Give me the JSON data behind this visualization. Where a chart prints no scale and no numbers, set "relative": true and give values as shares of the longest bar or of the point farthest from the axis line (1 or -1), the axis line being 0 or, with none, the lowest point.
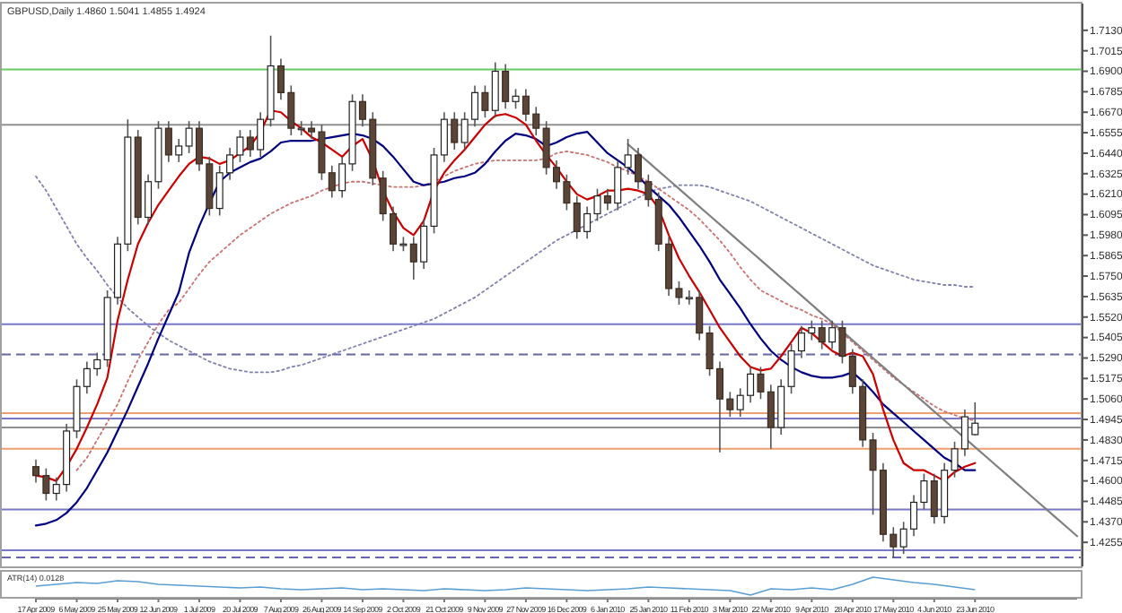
{
  "chart_data": [
    {
      "type": "candlestick",
      "title": "GBPUSD,Daily 1.4860 1.5041 1.4855 1.4924",
      "categories": [
        "17 Apr 2009",
        null,
        null,
        null,
        "6 May 2009",
        null,
        null,
        null,
        "25 May 2009",
        null,
        null,
        null,
        "12 Jun 2009",
        null,
        null,
        null,
        "1 Jul 2009",
        null,
        null,
        null,
        "20 Jul 2009",
        null,
        null,
        null,
        "7 Aug 2009",
        null,
        null,
        null,
        "26 Aug 2009",
        null,
        null,
        null,
        "14 Sep 2009",
        null,
        null,
        null,
        "2 Oct 2009",
        null,
        null,
        null,
        "21 Oct 2009",
        null,
        null,
        null,
        "9 Nov 2009",
        null,
        null,
        null,
        "27 Nov 2009",
        null,
        null,
        null,
        "16 Dec 2009",
        null,
        null,
        null,
        "6 Jan 2010",
        null,
        null,
        null,
        "25 Jan 2010",
        null,
        null,
        null,
        "11 Feb 2010",
        null,
        null,
        null,
        "3 Mar 2010",
        null,
        null,
        null,
        "22 Mar 2010",
        null,
        null,
        null,
        "9 Apr 2010",
        null,
        null,
        null,
        "28 Apr 2010",
        null,
        null,
        null,
        "17 May 2010",
        null,
        null,
        null,
        "4 Jun 2010",
        null,
        null,
        null,
        "23 Jun 2010",
        null,
        null,
        null,
        null,
        null,
        null,
        null,
        null,
        null,
        null
      ],
      "ohlc": [
        [
          1.468,
          1.472,
          1.459,
          1.463
        ],
        [
          1.463,
          1.467,
          1.449,
          1.453
        ],
        [
          1.453,
          1.462,
          1.449,
          1.458
        ],
        [
          1.458,
          1.492,
          1.454,
          1.488
        ],
        [
          1.488,
          1.517,
          1.484,
          1.513
        ],
        [
          1.513,
          1.527,
          1.509,
          1.523
        ],
        [
          1.523,
          1.532,
          1.519,
          1.528
        ],
        [
          1.528,
          1.567,
          1.524,
          1.563
        ],
        [
          1.563,
          1.597,
          1.559,
          1.593
        ],
        [
          1.593,
          1.663,
          1.589,
          1.653
        ],
        [
          1.653,
          1.657,
          1.604,
          1.608
        ],
        [
          1.608,
          1.632,
          1.604,
          1.628
        ],
        [
          1.628,
          1.662,
          1.624,
          1.658
        ],
        [
          1.658,
          1.662,
          1.639,
          1.643
        ],
        [
          1.643,
          1.652,
          1.639,
          1.648
        ],
        [
          1.648,
          1.662,
          1.644,
          1.658
        ],
        [
          1.658,
          1.662,
          1.634,
          1.638
        ],
        [
          1.638,
          1.642,
          1.609,
          1.613
        ],
        [
          1.613,
          1.637,
          1.609,
          1.633
        ],
        [
          1.633,
          1.647,
          1.629,
          1.643
        ],
        [
          1.643,
          1.657,
          1.639,
          1.653
        ],
        [
          1.653,
          1.657,
          1.642,
          1.646
        ],
        [
          1.646,
          1.667,
          1.642,
          1.663
        ],
        [
          1.663,
          1.71,
          1.659,
          1.693
        ],
        [
          1.693,
          1.697,
          1.674,
          1.678
        ],
        [
          1.678,
          1.682,
          1.654,
          1.658
        ],
        [
          1.658,
          1.662,
          1.654,
          1.658
        ],
        [
          1.658,
          1.662,
          1.652,
          1.656
        ],
        [
          1.656,
          1.66,
          1.629,
          1.633
        ],
        [
          1.633,
          1.637,
          1.619,
          1.623
        ],
        [
          1.623,
          1.642,
          1.619,
          1.638
        ],
        [
          1.638,
          1.677,
          1.634,
          1.673
        ],
        [
          1.673,
          1.677,
          1.659,
          1.663
        ],
        [
          1.663,
          1.667,
          1.626,
          1.63
        ],
        [
          1.63,
          1.634,
          1.606,
          1.61
        ],
        [
          1.61,
          1.614,
          1.589,
          1.593
        ],
        [
          1.593,
          1.597,
          1.589,
          1.593
        ],
        [
          1.593,
          1.597,
          1.573,
          1.583
        ],
        [
          1.583,
          1.607,
          1.579,
          1.603
        ],
        [
          1.603,
          1.647,
          1.599,
          1.643
        ],
        [
          1.643,
          1.667,
          1.639,
          1.663
        ],
        [
          1.663,
          1.667,
          1.646,
          1.65
        ],
        [
          1.65,
          1.667,
          1.646,
          1.663
        ],
        [
          1.663,
          1.682,
          1.659,
          1.678
        ],
        [
          1.678,
          1.682,
          1.664,
          1.668
        ],
        [
          1.668,
          1.695,
          1.664,
          1.69
        ],
        [
          1.69,
          1.694,
          1.669,
          1.673
        ],
        [
          1.673,
          1.68,
          1.669,
          1.676
        ],
        [
          1.676,
          1.68,
          1.662,
          1.666
        ],
        [
          1.666,
          1.67,
          1.654,
          1.658
        ],
        [
          1.658,
          1.662,
          1.632,
          1.636
        ],
        [
          1.636,
          1.64,
          1.624,
          1.628
        ],
        [
          1.628,
          1.632,
          1.612,
          1.616
        ],
        [
          1.616,
          1.62,
          1.596,
          1.6
        ],
        [
          1.6,
          1.614,
          1.596,
          1.61
        ],
        [
          1.61,
          1.624,
          1.606,
          1.62
        ],
        [
          1.62,
          1.624,
          1.612,
          1.616
        ],
        [
          1.616,
          1.64,
          1.612,
          1.636
        ],
        [
          1.636,
          1.652,
          1.632,
          1.643
        ],
        [
          1.643,
          1.647,
          1.624,
          1.628
        ],
        [
          1.628,
          1.632,
          1.614,
          1.618
        ],
        [
          1.618,
          1.622,
          1.589,
          1.593
        ],
        [
          1.593,
          1.597,
          1.564,
          1.568
        ],
        [
          1.568,
          1.572,
          1.559,
          1.563
        ],
        [
          1.563,
          1.567,
          1.559,
          1.563
        ],
        [
          1.563,
          1.567,
          1.539,
          1.543
        ],
        [
          1.543,
          1.547,
          1.519,
          1.523
        ],
        [
          1.523,
          1.527,
          1.476,
          1.506
        ],
        [
          1.506,
          1.51,
          1.496,
          1.5
        ],
        [
          1.5,
          1.512,
          1.496,
          1.508
        ],
        [
          1.508,
          1.524,
          1.504,
          1.52
        ],
        [
          1.52,
          1.524,
          1.506,
          1.51
        ],
        [
          1.51,
          1.514,
          1.478,
          1.49
        ],
        [
          1.49,
          1.517,
          1.486,
          1.513
        ],
        [
          1.513,
          1.537,
          1.509,
          1.533
        ],
        [
          1.533,
          1.547,
          1.529,
          1.543
        ],
        [
          1.543,
          1.55,
          1.539,
          1.546
        ],
        [
          1.546,
          1.55,
          1.534,
          1.538
        ],
        [
          1.538,
          1.55,
          1.534,
          1.546
        ],
        [
          1.546,
          1.55,
          1.526,
          1.53
        ],
        [
          1.53,
          1.534,
          1.509,
          1.513
        ],
        [
          1.513,
          1.517,
          1.479,
          1.483
        ],
        [
          1.483,
          1.487,
          1.441,
          1.466
        ],
        [
          1.466,
          1.47,
          1.426,
          1.43
        ],
        [
          1.43,
          1.434,
          1.417,
          1.423
        ],
        [
          1.423,
          1.437,
          1.419,
          1.433
        ],
        [
          1.433,
          1.452,
          1.429,
          1.448
        ],
        [
          1.448,
          1.464,
          1.444,
          1.46
        ],
        [
          1.46,
          1.464,
          1.436,
          1.44
        ],
        [
          1.44,
          1.47,
          1.436,
          1.466
        ],
        [
          1.466,
          1.482,
          1.462,
          1.478
        ],
        [
          1.478,
          1.5,
          1.474,
          1.496
        ],
        [
          1.486,
          1.5041,
          1.4855,
          1.4924
        ],
        null,
        null,
        null,
        null,
        null,
        null,
        null,
        null,
        null,
        null
      ],
      "ylim": [
        1.412,
        1.728
      ],
      "yticks": [
        {
          "value": 1.713,
          "label": "1.7130"
        },
        1.7015,
        {
          "value": 1.69,
          "label": "1.6900"
        },
        1.6785,
        {
          "value": 1.667,
          "label": "1.6670"
        },
        1.6555,
        {
          "value": 1.644,
          "label": "1.6440"
        },
        1.6325,
        {
          "value": 1.621,
          "label": "1.6210"
        },
        1.6095,
        {
          "value": 1.598,
          "label": "1.5980"
        },
        1.5865,
        {
          "value": 1.575,
          "label": "1.5750"
        },
        1.5635,
        {
          "value": 1.552,
          "label": "1.5520"
        },
        1.5405,
        {
          "value": 1.529,
          "label": "1.5290"
        },
        1.5175,
        {
          "value": 1.506,
          "label": "1.5060"
        },
        1.4945,
        {
          "value": 1.483,
          "label": "1.4830"
        },
        1.4715,
        {
          "value": 1.46,
          "label": "1.4600"
        },
        1.4485,
        {
          "value": 1.437,
          "label": "1.4370"
        },
        1.4255
      ],
      "series": [
        {
          "type": "line",
          "color": "#8080b0",
          "line_style": "dotted",
          "values": [
            1.631,
            1.623,
            1.613,
            1.603,
            1.593,
            1.585,
            1.578,
            1.57,
            1.563,
            1.557,
            1.552,
            1.547,
            1.543,
            1.539,
            1.536,
            1.533,
            1.53,
            1.527,
            1.525,
            1.523,
            1.522,
            1.521,
            1.521,
            1.521,
            1.522,
            1.524,
            1.525,
            1.527,
            1.529,
            1.531,
            1.533,
            1.535,
            1.537,
            1.539,
            1.541,
            1.543,
            1.545,
            1.547,
            1.549,
            1.551,
            1.554,
            1.557,
            1.56,
            1.563,
            1.567,
            1.571,
            1.575,
            1.579,
            1.583,
            1.587,
            1.591,
            1.595,
            1.598,
            1.601,
            1.604,
            1.607,
            1.61,
            1.613,
            1.616,
            1.619,
            1.622,
            1.624,
            1.625,
            1.626,
            1.626,
            1.626,
            1.625,
            1.623,
            1.621,
            1.619,
            1.617,
            1.614,
            1.611,
            1.608,
            1.605,
            1.602,
            1.599,
            1.596,
            1.593,
            1.59,
            1.587,
            1.584,
            1.581,
            1.579,
            1.577,
            1.575,
            1.573,
            1.572,
            1.571,
            1.57,
            1.57,
            1.569,
            1.569,
            null,
            null,
            null,
            null,
            null,
            null,
            null,
            null,
            null,
            null
          ]
        },
        {
          "type": "line",
          "color": "#cc7070",
          "line_style": "dotted",
          "values": [
            null,
            null,
            null,
            null,
            1.466,
            1.473,
            1.483,
            1.493,
            1.503,
            1.516,
            1.528,
            1.538,
            1.548,
            1.556,
            1.56,
            1.568,
            1.576,
            1.583,
            1.588,
            1.593,
            1.598,
            1.602,
            1.606,
            1.61,
            1.613,
            1.616,
            1.618,
            1.62,
            1.623,
            1.625,
            1.627,
            1.628,
            1.628,
            1.627,
            1.626,
            1.625,
            1.625,
            1.625,
            1.626,
            1.628,
            1.631,
            1.634,
            1.636,
            1.638,
            1.639,
            1.64,
            1.64,
            1.64,
            1.64,
            1.64,
            1.641,
            1.644,
            1.645,
            1.644,
            1.643,
            1.641,
            1.639,
            1.636,
            1.634,
            1.631,
            1.628,
            1.624,
            1.62,
            1.616,
            1.612,
            1.607,
            1.601,
            1.595,
            1.588,
            1.58,
            1.573,
            1.567,
            1.564,
            1.561,
            1.558,
            1.556,
            1.553,
            1.551,
            1.548,
            1.543,
            1.538,
            1.533,
            1.528,
            1.523,
            1.518,
            1.514,
            1.51,
            1.506,
            1.502,
            1.499,
            1.497,
            1.495,
            1.494,
            null,
            null,
            null,
            null,
            null,
            null,
            null,
            null,
            null,
            null
          ]
        },
        {
          "type": "line",
          "color": "#000080",
          "values": [
            1.435,
            1.436,
            1.438,
            1.442,
            1.448,
            1.456,
            1.466,
            1.476,
            1.488,
            1.5,
            1.513,
            1.526,
            1.54,
            1.553,
            1.566,
            1.588,
            1.603,
            1.616,
            1.628,
            1.633,
            1.636,
            1.639,
            1.641,
            1.645,
            1.65,
            1.651,
            1.651,
            1.651,
            1.652,
            1.653,
            1.654,
            1.655,
            1.654,
            1.652,
            1.648,
            1.642,
            1.635,
            1.628,
            1.626,
            1.627,
            1.628,
            1.63,
            1.631,
            1.633,
            1.638,
            1.645,
            1.651,
            1.655,
            1.654,
            1.652,
            1.648,
            1.65,
            1.653,
            1.655,
            1.656,
            1.65,
            1.644,
            1.64,
            1.636,
            1.631,
            1.625,
            1.62,
            1.615,
            1.608,
            1.6,
            1.592,
            1.583,
            1.573,
            1.565,
            1.557,
            1.548,
            1.54,
            1.533,
            1.528,
            1.524,
            1.521,
            1.519,
            1.518,
            1.518,
            1.519,
            1.521,
            1.516,
            1.51,
            1.503,
            1.498,
            1.493,
            1.488,
            1.483,
            1.478,
            1.473,
            1.47,
            1.466,
            1.466,
            null,
            null,
            null,
            null,
            null,
            null,
            null,
            null,
            null,
            null
          ]
        },
        {
          "type": "line",
          "color": "#cc0000",
          "values": [
            1.463,
            1.462,
            1.46,
            1.468,
            1.478,
            1.49,
            1.503,
            1.518,
            1.55,
            1.573,
            1.593,
            1.605,
            1.615,
            1.623,
            1.631,
            1.638,
            1.642,
            1.641,
            1.638,
            1.64,
            1.644,
            1.648,
            1.656,
            1.668,
            1.667,
            1.662,
            1.658,
            1.653,
            1.65,
            1.646,
            1.642,
            1.648,
            1.652,
            1.64,
            1.623,
            1.611,
            1.602,
            1.598,
            1.606,
            1.623,
            1.633,
            1.64,
            1.646,
            1.653,
            1.66,
            1.665,
            1.666,
            1.664,
            1.66,
            1.651,
            1.643,
            1.636,
            1.628,
            1.621,
            1.618,
            1.62,
            1.623,
            1.623,
            1.624,
            1.623,
            1.621,
            1.613,
            1.598,
            1.585,
            1.575,
            1.566,
            1.556,
            1.546,
            1.538,
            1.53,
            1.524,
            1.522,
            1.523,
            1.53,
            1.538,
            1.546,
            1.543,
            1.538,
            1.533,
            1.53,
            1.532,
            1.53,
            1.52,
            1.5,
            1.483,
            1.47,
            1.466,
            1.466,
            1.463,
            1.46,
            1.465,
            1.468,
            1.47,
            null,
            null,
            null,
            null,
            null,
            null,
            null,
            null,
            null,
            null
          ]
        },
        {
          "type": "line",
          "color": "#808080",
          "values": [
            null,
            null,
            null,
            null,
            null,
            null,
            null,
            null,
            null,
            null,
            null,
            null,
            null,
            null,
            null,
            null,
            null,
            null,
            null,
            null,
            null,
            null,
            null,
            null,
            null,
            null,
            null,
            null,
            null,
            null,
            null,
            null,
            null,
            null,
            null,
            null,
            null,
            null,
            null,
            null,
            null,
            null,
            null,
            null,
            null,
            null,
            null,
            null,
            null,
            null,
            null,
            null,
            null,
            null,
            null,
            null,
            null,
            null,
            1.649,
            1.644,
            1.639,
            1.634,
            1.629,
            1.624,
            1.619,
            1.614,
            1.609,
            1.604,
            1.599,
            1.594,
            1.589,
            1.584,
            1.579,
            1.574,
            1.569,
            1.564,
            1.559,
            1.554,
            1.549,
            1.544,
            1.539,
            1.534,
            1.529,
            1.524,
            1.519,
            1.514,
            1.509,
            1.504,
            1.499,
            1.494,
            1.489,
            1.484,
            1.479,
            1.474,
            1.469,
            1.464,
            1.459,
            1.454,
            1.449,
            1.444,
            1.439,
            1.434,
            1.429
          ]
        }
      ],
      "ref_lines": [
        {
          "axis": "y",
          "value": 1.691,
          "color": "#66cc66"
        },
        {
          "axis": "y",
          "value": 1.66,
          "color": "#909090"
        },
        {
          "axis": "y",
          "value": 1.548,
          "color": "#7777cc"
        },
        {
          "axis": "y",
          "value": 1.531,
          "color": "#6666aa",
          "line_style": "dashed"
        },
        {
          "axis": "y",
          "value": 1.498,
          "color": "#f0a070"
        },
        {
          "axis": "y",
          "value": 1.495,
          "color": "#7777cc"
        },
        {
          "axis": "y",
          "value": 1.49,
          "color": "#909090"
        },
        {
          "axis": "y",
          "value": 1.478,
          "color": "#f0a070"
        },
        {
          "axis": "y",
          "value": 1.444,
          "color": "#7777cc"
        },
        {
          "axis": "y",
          "value": 1.421,
          "color": "#7777cc"
        },
        {
          "axis": "y",
          "value": 1.417,
          "color": "#6666aa",
          "line_style": "dashed"
        }
      ]
    },
    {
      "type": "line",
      "title": "ATR(14) 0.0128",
      "relative": true,
      "categories": [
        null,
        null,
        null,
        null,
        null,
        null,
        null,
        null,
        null,
        null,
        null,
        null,
        null,
        null,
        null,
        null,
        null,
        null,
        null,
        null,
        null,
        null,
        null,
        null,
        null,
        null,
        null,
        null,
        null,
        null,
        null,
        null,
        null,
        null,
        null,
        null,
        null,
        null,
        null,
        null,
        null,
        null,
        null,
        null,
        null,
        null,
        null
      ],
      "series": [
        {
          "color": "#5a9fd4",
          "values": [
            0.5,
            0.6,
            0.7,
            0.65,
            0.8,
            0.75,
            0.6,
            0.55,
            0.5,
            0.45,
            0.4,
            0.45,
            0.35,
            0.3,
            0.35,
            0.4,
            0.3,
            0.35,
            0.3,
            0.25,
            0.35,
            0.3,
            0.25,
            0.3,
            0.4,
            0.35,
            0.3,
            0.25,
            0.3,
            0.35,
            0.45,
            0.4,
            0.35,
            0.3,
            0.25,
            0,
            0.35,
            0.3,
            0.4,
            0.3,
            0.6,
            1,
            0.85,
            0.7,
            0.6,
            0.45,
            0.3
          ]
        }
      ]
    }
  ]
}
